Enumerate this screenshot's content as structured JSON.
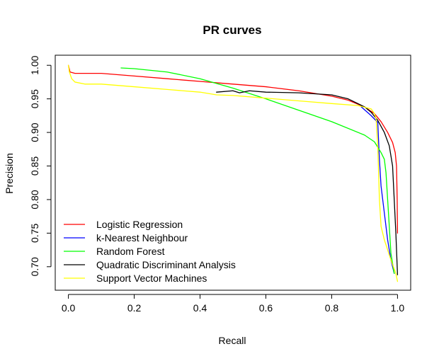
{
  "chart_data": {
    "type": "line",
    "title": "PR curves",
    "xlabel": "Recall",
    "ylabel": "Precision",
    "xlim": [
      -0.04,
      1.04
    ],
    "ylim": [
      0.665,
      1.015
    ],
    "x_ticks": [
      0.0,
      0.2,
      0.4,
      0.6,
      0.8,
      1.0
    ],
    "x_tick_labels": [
      "0.0",
      "0.2",
      "0.4",
      "0.6",
      "0.8",
      "1.0"
    ],
    "y_ticks": [
      0.7,
      0.75,
      0.8,
      0.85,
      0.9,
      0.95,
      1.0
    ],
    "y_tick_labels": [
      "0.70",
      "0.75",
      "0.80",
      "0.85",
      "0.90",
      "0.95",
      "1.00"
    ],
    "grid": false,
    "legend_position": "bottom-left",
    "series": [
      {
        "name": "Logistic Regression",
        "color": "#ff0000",
        "points": [
          [
            0.0,
            1.0
          ],
          [
            0.005,
            0.99
          ],
          [
            0.02,
            0.988
          ],
          [
            0.1,
            0.988
          ],
          [
            0.2,
            0.984
          ],
          [
            0.3,
            0.98
          ],
          [
            0.4,
            0.976
          ],
          [
            0.5,
            0.972
          ],
          [
            0.6,
            0.968
          ],
          [
            0.7,
            0.962
          ],
          [
            0.8,
            0.954
          ],
          [
            0.85,
            0.948
          ],
          [
            0.9,
            0.938
          ],
          [
            0.93,
            0.928
          ],
          [
            0.95,
            0.916
          ],
          [
            0.97,
            0.9
          ],
          [
            0.985,
            0.885
          ],
          [
            0.993,
            0.87
          ],
          [
            0.997,
            0.85
          ],
          [
            0.999,
            0.8
          ],
          [
            1.0,
            0.75
          ]
        ]
      },
      {
        "name": "k-Nearest Neighbour",
        "color": "#0000ff",
        "points": [
          [
            0.89,
            0.938
          ],
          [
            0.92,
            0.925
          ],
          [
            0.94,
            0.915
          ],
          [
            0.945,
            0.86
          ],
          [
            0.95,
            0.82
          ],
          [
            0.96,
            0.78
          ],
          [
            0.97,
            0.74
          ],
          [
            0.98,
            0.71
          ],
          [
            0.99,
            0.69
          ]
        ]
      },
      {
        "name": "Random Forest",
        "color": "#00ff00",
        "points": [
          [
            0.16,
            0.996
          ],
          [
            0.2,
            0.995
          ],
          [
            0.3,
            0.99
          ],
          [
            0.4,
            0.98
          ],
          [
            0.5,
            0.966
          ],
          [
            0.6,
            0.95
          ],
          [
            0.7,
            0.933
          ],
          [
            0.8,
            0.916
          ],
          [
            0.9,
            0.896
          ],
          [
            0.93,
            0.886
          ],
          [
            0.95,
            0.87
          ],
          [
            0.96,
            0.86
          ],
          [
            0.965,
            0.84
          ],
          [
            0.97,
            0.8
          ],
          [
            0.975,
            0.76
          ],
          [
            0.98,
            0.72
          ],
          [
            0.99,
            0.69
          ]
        ]
      },
      {
        "name": "Quadratic Discriminant Analysis",
        "color": "#000000",
        "points": [
          [
            0.45,
            0.96
          ],
          [
            0.5,
            0.962
          ],
          [
            0.52,
            0.959
          ],
          [
            0.55,
            0.962
          ],
          [
            0.6,
            0.96
          ],
          [
            0.7,
            0.959
          ],
          [
            0.8,
            0.956
          ],
          [
            0.85,
            0.95
          ],
          [
            0.9,
            0.938
          ],
          [
            0.92,
            0.93
          ],
          [
            0.94,
            0.918
          ],
          [
            0.96,
            0.9
          ],
          [
            0.975,
            0.88
          ],
          [
            0.985,
            0.85
          ],
          [
            0.99,
            0.8
          ],
          [
            0.995,
            0.75
          ],
          [
            1.0,
            0.688
          ]
        ]
      },
      {
        "name": "Support Vector Machines",
        "color": "#ffff00",
        "points": [
          [
            0.0,
            1.0
          ],
          [
            0.003,
            0.99
          ],
          [
            0.01,
            0.98
          ],
          [
            0.02,
            0.975
          ],
          [
            0.05,
            0.972
          ],
          [
            0.1,
            0.972
          ],
          [
            0.2,
            0.968
          ],
          [
            0.3,
            0.964
          ],
          [
            0.4,
            0.96
          ],
          [
            0.45,
            0.956
          ],
          [
            0.5,
            0.955
          ],
          [
            0.6,
            0.951
          ],
          [
            0.7,
            0.947
          ],
          [
            0.8,
            0.943
          ],
          [
            0.88,
            0.94
          ],
          [
            0.92,
            0.935
          ],
          [
            0.93,
            0.928
          ],
          [
            0.935,
            0.92
          ],
          [
            0.94,
            0.88
          ],
          [
            0.945,
            0.8
          ],
          [
            0.95,
            0.76
          ],
          [
            0.96,
            0.74
          ],
          [
            0.98,
            0.71
          ],
          [
            0.995,
            0.69
          ],
          [
            1.0,
            0.678
          ]
        ]
      }
    ]
  }
}
